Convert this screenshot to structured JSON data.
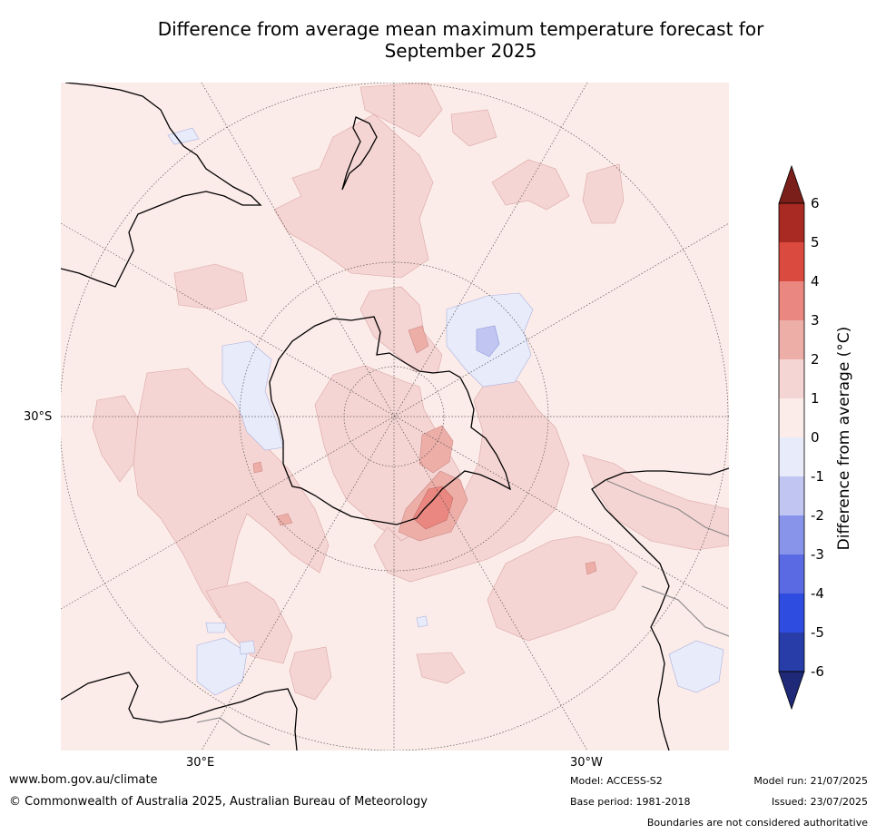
{
  "title_line1": "Difference from average mean maximum temperature forecast for",
  "title_line2": "September 2025",
  "grid_labels": {
    "lat": "30°S",
    "lon_east": "30°E",
    "lon_west": "30°W"
  },
  "colorbar": {
    "label": "Difference from average (°C)",
    "ticks": [
      "6",
      "5",
      "4",
      "3",
      "2",
      "1",
      "0",
      "-1",
      "-2",
      "-3",
      "-4",
      "-5",
      "-6"
    ],
    "colors": {
      "above_6": "#7b1f1a",
      "5_6": "#a92a22",
      "4_5": "#db4a3e",
      "3_4": "#e98780",
      "2_3": "#edaea8",
      "1_2": "#f5d5d3",
      "0_1": "#fbebe9",
      "m1_0": "#e8ebfa",
      "m2_m1": "#c0c6f1",
      "m3_m2": "#8894e9",
      "m4_m3": "#5a6ae2",
      "m5_m4": "#2f4ce0",
      "m6_m5": "#283da8",
      "below_m6": "#1e2a78"
    }
  },
  "footer": {
    "url": "www.bom.gov.au/climate",
    "copyright": "© Commonwealth of Australia 2025, Australian Bureau of Meteorology",
    "model": "Model: ACCESS-S2",
    "base_period": "Base period: 1981-2018",
    "model_run": "Model run: 21/07/2025",
    "issued": "Issued: 23/07/2025",
    "disclaimer": "Boundaries are not considered authoritative"
  }
}
